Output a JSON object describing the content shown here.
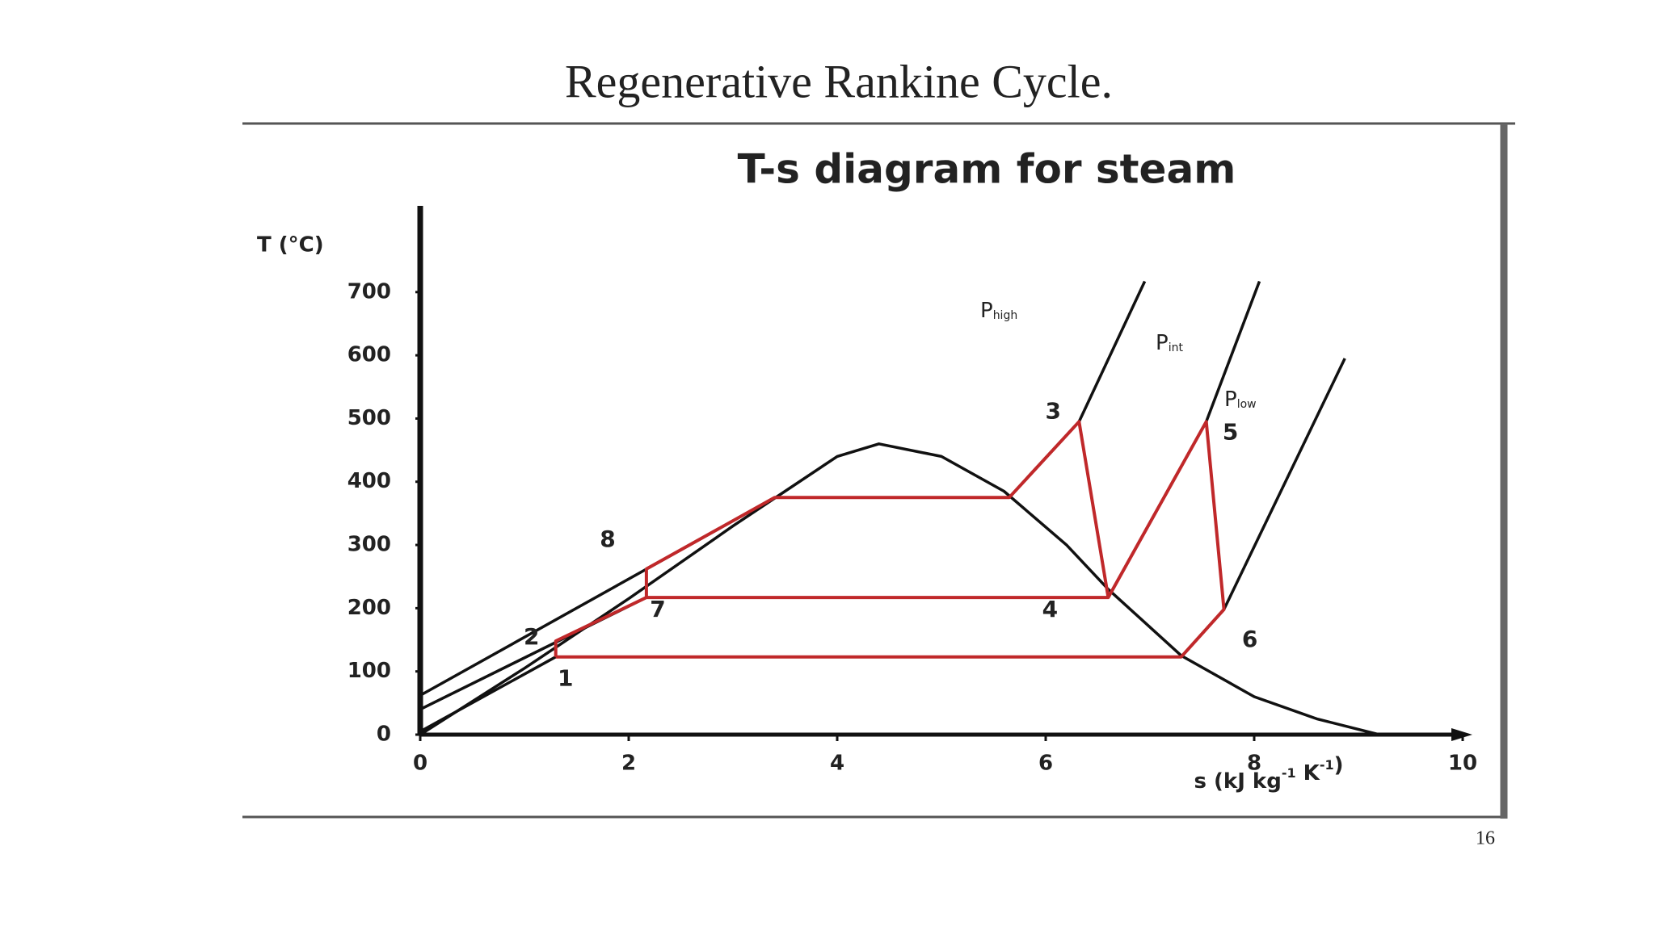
{
  "slide": {
    "title": "Regenerative Rankine Cycle.",
    "page_number": "16"
  },
  "chart_data": {
    "type": "line",
    "title": "T-s diagram for steam",
    "y_label": "T (°C)",
    "x_label": {
      "text": [
        "s (kJ kg",
        " K",
        ")"
      ],
      "sup": [
        "-1",
        "-1"
      ]
    },
    "xlim": [
      0,
      10
    ],
    "xticks": [
      0,
      2,
      4,
      6,
      8,
      10
    ],
    "ylim": [
      0,
      830
    ],
    "yticks": [
      0,
      100,
      200,
      300,
      400,
      500,
      600,
      700
    ],
    "series": [
      {
        "color": "#111111",
        "x": [
          0,
          1,
          2,
          3,
          3.5,
          4,
          4.4,
          5,
          5.6,
          6.2,
          6.6,
          7.3,
          8,
          8.6,
          9.2
        ],
        "values": [
          0,
          105,
          215,
          330,
          385,
          440,
          460,
          440,
          385,
          300,
          230,
          125,
          60,
          25,
          0
        ]
      },
      {
        "name": {
          "main": "P",
          "sub": "high"
        },
        "color": "#111111",
        "x": [
          0,
          3.4,
          null,
          5.65,
          6.32,
          6.95
        ],
        "values": [
          62,
          375,
          null,
          375,
          495,
          717
        ]
      },
      {
        "name": {
          "main": "P",
          "sub": "int"
        },
        "color": "#111111",
        "x": [
          0,
          2.17,
          null,
          6.6,
          7.54,
          8.05
        ],
        "values": [
          40,
          217,
          null,
          217,
          495,
          717
        ]
      },
      {
        "name": {
          "main": "P",
          "sub": "low"
        },
        "color": "#111111",
        "x": [
          0,
          1.3,
          null,
          7.3,
          7.71,
          8.87
        ],
        "values": [
          5,
          123,
          null,
          123,
          198,
          595
        ]
      },
      {
        "color": "#c0282a",
        "x": [
          1.3,
          1.3,
          2.17,
          2.17,
          3.4,
          5.65,
          6.32,
          6.6,
          7.54,
          7.71,
          7.3,
          1.3,
          null,
          2.17,
          6.6
        ],
        "values": [
          123,
          148,
          217,
          262,
          375,
          375,
          495,
          217,
          495,
          198,
          123,
          123,
          null,
          217,
          217
        ]
      }
    ],
    "points": [
      {
        "label": "1",
        "s": 1.3,
        "T": 123
      },
      {
        "label": "2",
        "s": 1.3,
        "T": 148
      },
      {
        "label": "3",
        "s": 6.32,
        "T": 495
      },
      {
        "label": "4",
        "s": 6.6,
        "T": 217
      },
      {
        "label": "5",
        "s": 7.54,
        "T": 495
      },
      {
        "label": "6",
        "s": 7.71,
        "T": 198
      },
      {
        "label": "7",
        "s": 2.17,
        "T": 217
      },
      {
        "label": "8",
        "s": 2.17,
        "T": 262
      }
    ]
  }
}
